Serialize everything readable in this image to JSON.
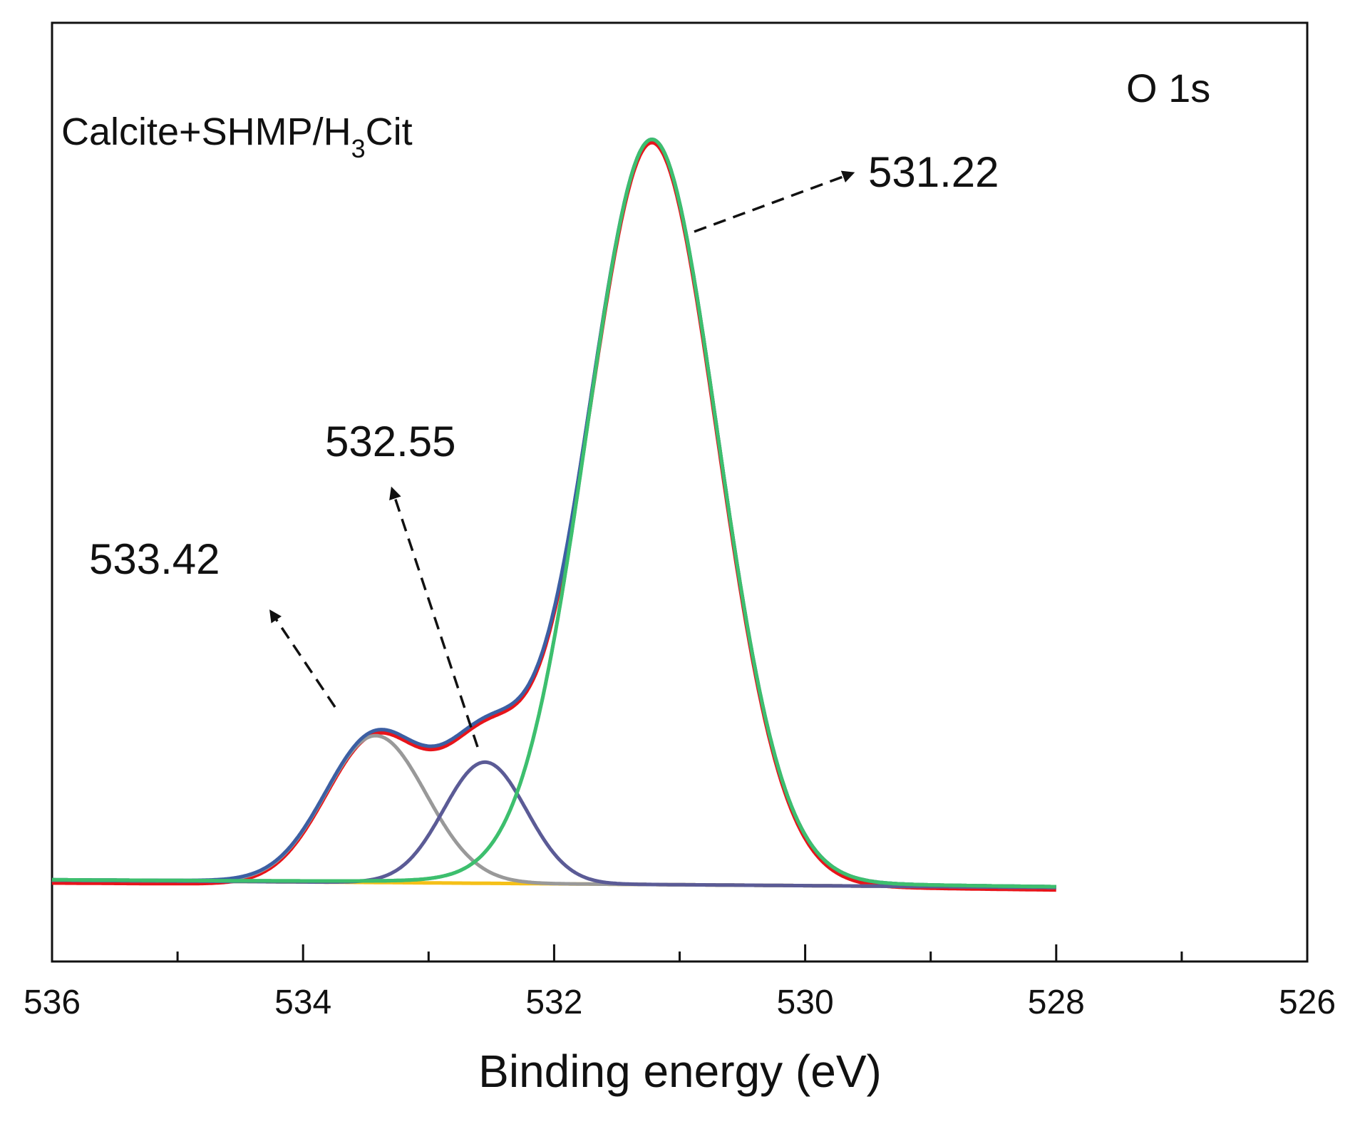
{
  "chart_data": {
    "type": "line",
    "title": "",
    "region_label": "O 1s",
    "sample_label": {
      "main": "Calcite+SHMP/H",
      "subscript": "3",
      "suffix": "Cit"
    },
    "xlabel": "Binding energy (eV)",
    "ylabel": "",
    "xlim": [
      536,
      526
    ],
    "x_reversed": true,
    "x_ticks": [
      536,
      534,
      532,
      530,
      528,
      526
    ],
    "x_minor_ticks": [
      535,
      533,
      531,
      529,
      527
    ],
    "y_ticks_shown": false,
    "ylim": [
      -0.1,
      1.12
    ],
    "x_data_range": [
      536,
      528
    ],
    "background": {
      "type": "linear",
      "start": [
        536,
        0.005
      ],
      "end": [
        528,
        -0.005
      ]
    },
    "peaks": [
      {
        "name": "533.42",
        "center": 533.42,
        "height": 0.2,
        "sigma": 0.4,
        "color": "#999999"
      },
      {
        "name": "532.55",
        "center": 532.55,
        "height": 0.165,
        "sigma": 0.33,
        "color": "#5b5b96"
      },
      {
        "name": "531.22",
        "center": 531.22,
        "height": 1.0,
        "sigma": 0.52,
        "tail": 0.06,
        "color": "#3dbf6e"
      }
    ],
    "series": [
      {
        "name": "Raw data",
        "color": "#e8141a"
      },
      {
        "name": "Envelope",
        "color": "#3c5fa3"
      },
      {
        "name": "Background",
        "color": "#f5c018"
      }
    ],
    "annotations": [
      {
        "text": "531.22",
        "points_to": 531.22,
        "style": "dashed-arrow"
      },
      {
        "text": "532.55",
        "points_to": 532.55,
        "style": "dashed-arrow"
      },
      {
        "text": "533.42",
        "points_to": 533.42,
        "style": "dashed-arrow"
      }
    ],
    "grid": false,
    "legend": "none"
  }
}
